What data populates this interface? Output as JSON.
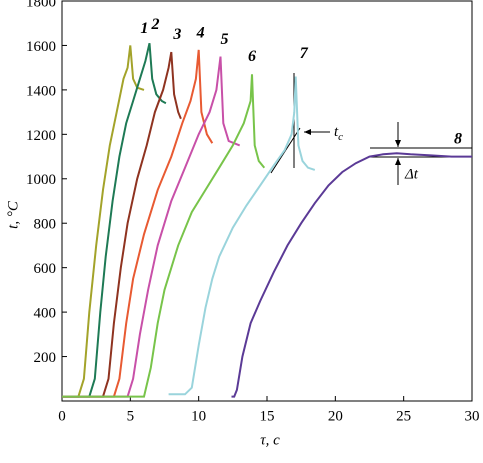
{
  "chart_data": {
    "type": "line",
    "x_label": "τ, с",
    "y_label": "t, °C",
    "xlim": [
      0,
      30
    ],
    "xticks": [
      0,
      5,
      10,
      15,
      20,
      25,
      30
    ],
    "ylim": [
      0,
      1800
    ],
    "yticks": [
      200,
      400,
      600,
      800,
      1000,
      1200,
      1400,
      1600,
      1800
    ],
    "grid": false,
    "annotations": [
      {
        "text": "t",
        "sub": "c"
      },
      {
        "text": "Δt"
      }
    ],
    "series": [
      {
        "name": "1",
        "color": "#a3a32a",
        "x": [
          0,
          1.2,
          1.6,
          2,
          2.5,
          3,
          3.5,
          4,
          4.5,
          4.8,
          5.0,
          5.2,
          5.5,
          6.0
        ],
        "values": [
          20,
          20,
          100,
          400,
          700,
          950,
          1150,
          1300,
          1450,
          1500,
          1600,
          1450,
          1410,
          1400
        ]
      },
      {
        "name": "2",
        "color": "#1e7a55",
        "x": [
          0,
          2.0,
          2.4,
          2.8,
          3.2,
          3.7,
          4.2,
          4.7,
          5.2,
          5.7,
          6.1,
          6.4,
          6.6,
          6.9,
          7.3,
          7.6
        ],
        "values": [
          20,
          20,
          100,
          400,
          650,
          900,
          1100,
          1250,
          1350,
          1450,
          1530,
          1610,
          1450,
          1380,
          1350,
          1340
        ]
      },
      {
        "name": "3",
        "color": "#8f3320",
        "x": [
          0,
          3.0,
          3.4,
          3.8,
          4.3,
          4.8,
          5.5,
          6.2,
          6.8,
          7.4,
          7.8,
          8.0,
          8.2,
          8.5,
          8.7
        ],
        "values": [
          20,
          20,
          100,
          350,
          600,
          800,
          1000,
          1150,
          1300,
          1400,
          1500,
          1570,
          1380,
          1300,
          1270
        ]
      },
      {
        "name": "4",
        "color": "#e85a32",
        "x": [
          0,
          3.8,
          4.2,
          4.7,
          5.2,
          6,
          7,
          8,
          8.8,
          9.4,
          9.8,
          10.0,
          10.2,
          10.6,
          11.0
        ],
        "values": [
          20,
          20,
          100,
          350,
          550,
          750,
          950,
          1100,
          1250,
          1350,
          1450,
          1580,
          1300,
          1200,
          1160
        ]
      },
      {
        "name": "5",
        "color": "#c850a8",
        "x": [
          0,
          4.8,
          5.2,
          5.7,
          6.3,
          7,
          8,
          9,
          10,
          10.8,
          11.3,
          11.6,
          11.8,
          12.2,
          13.0
        ],
        "values": [
          20,
          20,
          100,
          300,
          500,
          700,
          900,
          1050,
          1200,
          1300,
          1400,
          1550,
          1250,
          1170,
          1150
        ]
      },
      {
        "name": "6",
        "color": "#78c44a",
        "x": [
          0,
          6.0,
          6.5,
          7,
          7.5,
          8.5,
          9.5,
          10.5,
          11.5,
          12.5,
          13.3,
          13.8,
          13.9,
          14.1,
          14.4,
          14.8
        ],
        "values": [
          20,
          20,
          150,
          350,
          500,
          700,
          850,
          950,
          1050,
          1150,
          1250,
          1350,
          1470,
          1150,
          1080,
          1050
        ]
      },
      {
        "name": "7",
        "color": "#9ad4dc",
        "x": [
          7.8,
          9.0,
          9.5,
          10,
          10.5,
          11,
          11.5,
          12.5,
          13.5,
          14.5,
          15.5,
          16.3,
          16.8,
          17.0,
          17.1,
          17.3,
          17.6,
          18.0,
          18.5
        ],
        "values": [
          30,
          30,
          60,
          250,
          420,
          550,
          650,
          780,
          880,
          970,
          1060,
          1130,
          1200,
          1300,
          1460,
          1150,
          1080,
          1050,
          1040
        ]
      },
      {
        "name": "8",
        "color": "#5b3a96",
        "x": [
          12.4,
          12.6,
          12.8,
          13.2,
          13.8,
          14.5,
          15.5,
          16.5,
          17.5,
          18.5,
          19.5,
          20.5,
          21.5,
          22.5,
          23.5,
          24.5,
          25.5,
          27,
          28.5,
          30
        ],
        "values": [
          20,
          20,
          50,
          200,
          350,
          450,
          580,
          700,
          800,
          890,
          970,
          1030,
          1070,
          1100,
          1110,
          1115,
          1110,
          1105,
          1100,
          1100
        ]
      }
    ]
  }
}
